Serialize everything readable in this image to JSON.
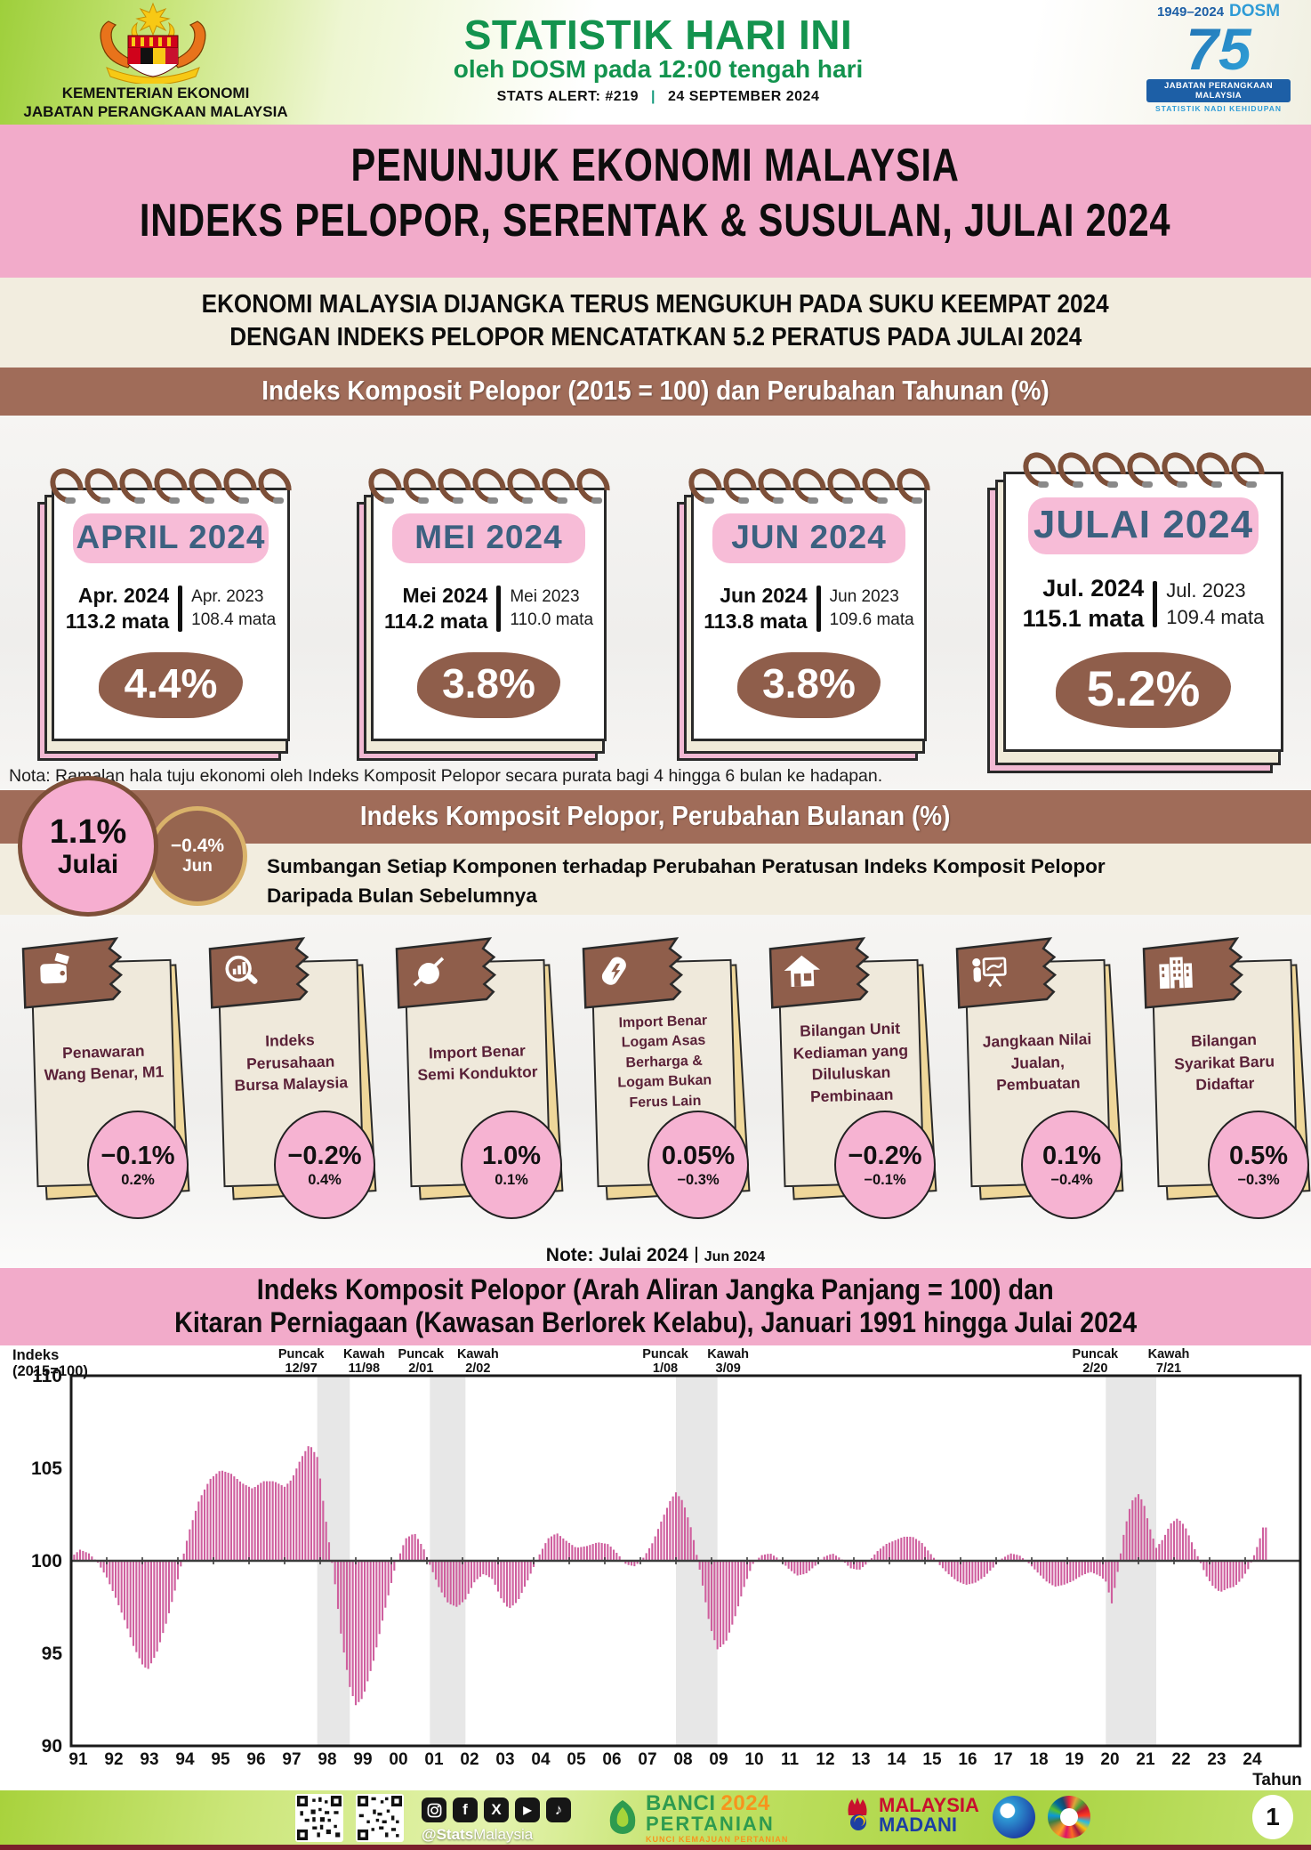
{
  "header": {
    "ministry_line1": "KEMENTERIAN EKONOMI",
    "ministry_line2": "JABATAN PERANGKAAN MALAYSIA",
    "title": "STATISTIK HARI INI",
    "subtitle": "oleh DOSM pada 12:00 tengah hari",
    "alert_label": "STATS ALERT: #219",
    "alert_sep": "|",
    "alert_date": "24 SEPTEMBER 2024",
    "dosm75": {
      "years": "1949–2024",
      "brand": "DOSM",
      "number": "75",
      "bar": "JABATAN PERANGKAAN MALAYSIA",
      "tagline": "STATISTIK NADI KEHIDUPAN"
    }
  },
  "title_band": {
    "line1": "PENUNJUK EKONOMI MALAYSIA",
    "line2": "INDEKS PELOPOR, SERENTAK & SUSULAN, JULAI 2024"
  },
  "statement": {
    "line1": "EKONOMI MALAYSIA DIJANGKA TERUS MENGUKUH PADA SUKU KEEMPAT 2024",
    "line2": "DENGAN INDEKS PELOPOR MENCATATKAN 5.2 PERATUS PADA JULAI 2024"
  },
  "annual": {
    "heading": "Indeks Komposit Pelopor (2015 = 100) dan Perubahan Tahunan (%)",
    "months": [
      {
        "label": "APRIL 2024",
        "cur_label": "Apr. 2024",
        "cur_value": "113.2 mata",
        "prev_label": "Apr. 2023",
        "prev_value": "108.4 mata",
        "change": "4.4%"
      },
      {
        "label": "MEI 2024",
        "cur_label": "Mei 2024",
        "cur_value": "114.2 mata",
        "prev_label": "Mei 2023",
        "prev_value": "110.0 mata",
        "change": "3.8%"
      },
      {
        "label": "JUN 2024",
        "cur_label": "Jun 2024",
        "cur_value": "113.8 mata",
        "prev_label": "Jun 2023",
        "prev_value": "109.6 mata",
        "change": "3.8%"
      },
      {
        "label": "JULAI 2024",
        "cur_label": "Jul. 2024",
        "cur_value": "115.1 mata",
        "prev_label": "Jul. 2023",
        "prev_value": "109.4 mata",
        "change": "5.2%"
      }
    ],
    "note": "Nota: Ramalan hala tuju ekonomi oleh Indeks Komposit Pelopor secara purata bagi 4 hingga 6 bulan ke hadapan."
  },
  "monthly": {
    "heading": "Indeks Komposit Pelopor, Perubahan Bulanan (%)",
    "current": {
      "value": "1.1%",
      "label": "Julai"
    },
    "previous": {
      "value": "−0.4%",
      "label": "Jun"
    },
    "desc_line1": "Sumbangan Setiap Komponen terhadap Perubahan Peratusan Indeks Komposit Pelopor",
    "desc_line2": "Daripada Bulan Sebelumnya",
    "components": [
      {
        "icon": "wallet-icon",
        "title": "Penawaran Wang Benar, M1",
        "value": "−0.1%",
        "previous": "0.2%"
      },
      {
        "icon": "chart-magnifier-icon",
        "title": "Indeks Perusahaan Bursa Malaysia",
        "value": "−0.2%",
        "previous": "0.4%"
      },
      {
        "icon": "semiconductor-icon",
        "title": "Import Benar Semi Konduktor",
        "value": "1.0%",
        "previous": "0.1%"
      },
      {
        "icon": "metal-battery-icon",
        "title": "Import Benar Logam Asas Berharga & Logam Bukan Ferus Lain",
        "value": "0.05%",
        "previous": "−0.3%"
      },
      {
        "icon": "house-icon",
        "title": "Bilangan Unit Kediaman yang Diluluskan Pembinaan",
        "value": "−0.2%",
        "previous": "−0.1%"
      },
      {
        "icon": "presenter-icon",
        "title": "Jangkaan Nilai Jualan, Pembuatan",
        "value": "0.1%",
        "previous": "−0.4%"
      },
      {
        "icon": "buildings-icon",
        "title": "Bilangan Syarikat Baru Didaftar",
        "value": "0.5%",
        "previous": "−0.3%"
      }
    ],
    "note_label": "Note: Julai 2024",
    "note_prev": "Jun 2024"
  },
  "chart_data": {
    "type": "bar",
    "title_line1": "Indeks Komposit Pelopor (Arah Aliran Jangka Panjang = 100) dan",
    "title_line2": "Kitaran Perniagaan (Kawasan Berlorek Kelabu), Januari 1991 hingga Julai 2024",
    "ylabel_line1": "Indeks",
    "ylabel_line2": "(2015=100)",
    "xlabel": "Tahun",
    "ylim": [
      90,
      110
    ],
    "yticks": [
      90,
      95,
      100,
      105,
      110
    ],
    "baseline": 100,
    "x_start": 1991.0,
    "x_end": 2024.5833,
    "x_tick_labels": [
      "91",
      "92",
      "93",
      "94",
      "95",
      "96",
      "97",
      "98",
      "99",
      "00",
      "01",
      "02",
      "03",
      "04",
      "05",
      "06",
      "07",
      "08",
      "09",
      "10",
      "11",
      "12",
      "13",
      "14",
      "15",
      "16",
      "17",
      "18",
      "19",
      "20",
      "21",
      "22",
      "23",
      "24"
    ],
    "bar_color": "#cf5f9e",
    "shaded_band_color": "#e7e7e7",
    "grid": false,
    "shaded_bands": [
      {
        "from": 1997.9167,
        "to": 1998.8333
      },
      {
        "from": 2001.0833,
        "to": 2002.0833
      },
      {
        "from": 2008.0,
        "to": 2009.1667
      },
      {
        "from": 2020.0833,
        "to": 2021.5
      }
    ],
    "annotations": [
      {
        "label": "Puncak",
        "date": "12/97",
        "t": 1997.9167
      },
      {
        "label": "Kawah",
        "date": "11/98",
        "t": 1998.8333
      },
      {
        "label": "Puncak",
        "date": "2/01",
        "t": 2001.0833
      },
      {
        "label": "Kawah",
        "date": "2/02",
        "t": 2002.0833
      },
      {
        "label": "Puncak",
        "date": "1/08",
        "t": 2008.0
      },
      {
        "label": "Kawah",
        "date": "3/09",
        "t": 2009.1667
      },
      {
        "label": "Puncak",
        "date": "2/20",
        "t": 2020.0833
      },
      {
        "label": "Kawah",
        "date": "7/21",
        "t": 2021.5
      }
    ],
    "series_keypoints": [
      [
        1991.0,
        100.2
      ],
      [
        1991.25,
        100.6
      ],
      [
        1991.5,
        100.4
      ],
      [
        1991.75,
        99.9
      ],
      [
        1992.0,
        99.1
      ],
      [
        1992.25,
        98.0
      ],
      [
        1992.5,
        96.8
      ],
      [
        1992.75,
        95.4
      ],
      [
        1993.0,
        94.4
      ],
      [
        1993.15,
        94.1
      ],
      [
        1993.4,
        95.0
      ],
      [
        1993.7,
        96.8
      ],
      [
        1994.0,
        99.0
      ],
      [
        1994.3,
        101.5
      ],
      [
        1994.6,
        103.3
      ],
      [
        1994.9,
        104.4
      ],
      [
        1995.2,
        104.9
      ],
      [
        1995.5,
        104.7
      ],
      [
        1995.8,
        104.2
      ],
      [
        1996.1,
        103.9
      ],
      [
        1996.4,
        104.3
      ],
      [
        1996.7,
        104.3
      ],
      [
        1997.0,
        104.0
      ],
      [
        1997.2,
        104.4
      ],
      [
        1997.45,
        105.5
      ],
      [
        1997.7,
        106.3
      ],
      [
        1997.92,
        105.6
      ],
      [
        1998.1,
        103.0
      ],
      [
        1998.4,
        99.0
      ],
      [
        1998.6,
        95.8
      ],
      [
        1998.83,
        93.2
      ],
      [
        1999.0,
        92.2
      ],
      [
        1999.2,
        92.6
      ],
      [
        1999.5,
        94.6
      ],
      [
        1999.8,
        97.2
      ],
      [
        2000.1,
        99.6
      ],
      [
        2000.4,
        101.2
      ],
      [
        2000.65,
        101.5
      ],
      [
        2000.9,
        100.7
      ],
      [
        2001.08,
        99.8
      ],
      [
        2001.35,
        98.5
      ],
      [
        2001.6,
        97.7
      ],
      [
        2001.85,
        97.5
      ],
      [
        2002.08,
        97.9
      ],
      [
        2002.35,
        98.9
      ],
      [
        2002.6,
        99.3
      ],
      [
        2002.85,
        99.0
      ],
      [
        2003.1,
        97.9
      ],
      [
        2003.3,
        97.4
      ],
      [
        2003.55,
        97.8
      ],
      [
        2003.8,
        98.8
      ],
      [
        2004.1,
        100.1
      ],
      [
        2004.4,
        101.2
      ],
      [
        2004.65,
        101.5
      ],
      [
        2004.9,
        101.1
      ],
      [
        2005.2,
        100.7
      ],
      [
        2005.5,
        100.8
      ],
      [
        2005.8,
        101.0
      ],
      [
        2006.1,
        100.9
      ],
      [
        2006.35,
        100.4
      ],
      [
        2006.6,
        99.8
      ],
      [
        2006.85,
        99.7
      ],
      [
        2007.1,
        100.2
      ],
      [
        2007.35,
        101.0
      ],
      [
        2007.6,
        102.2
      ],
      [
        2007.85,
        103.3
      ],
      [
        2008.0,
        103.7
      ],
      [
        2008.2,
        103.2
      ],
      [
        2008.45,
        101.6
      ],
      [
        2008.7,
        99.2
      ],
      [
        2008.95,
        96.5
      ],
      [
        2009.17,
        95.2
      ],
      [
        2009.4,
        95.6
      ],
      [
        2009.65,
        96.9
      ],
      [
        2009.9,
        98.5
      ],
      [
        2010.15,
        99.8
      ],
      [
        2010.4,
        100.3
      ],
      [
        2010.65,
        100.4
      ],
      [
        2010.9,
        100.1
      ],
      [
        2011.15,
        99.6
      ],
      [
        2011.4,
        99.2
      ],
      [
        2011.65,
        99.3
      ],
      [
        2011.9,
        99.7
      ],
      [
        2012.15,
        100.2
      ],
      [
        2012.4,
        100.4
      ],
      [
        2012.65,
        100.1
      ],
      [
        2012.9,
        99.6
      ],
      [
        2013.15,
        99.5
      ],
      [
        2013.4,
        99.9
      ],
      [
        2013.65,
        100.5
      ],
      [
        2013.9,
        100.9
      ],
      [
        2014.15,
        101.1
      ],
      [
        2014.4,
        101.3
      ],
      [
        2014.65,
        101.3
      ],
      [
        2014.9,
        101.0
      ],
      [
        2015.15,
        100.4
      ],
      [
        2015.4,
        99.8
      ],
      [
        2015.65,
        99.3
      ],
      [
        2015.9,
        98.9
      ],
      [
        2016.15,
        98.7
      ],
      [
        2016.4,
        98.8
      ],
      [
        2016.65,
        99.1
      ],
      [
        2016.9,
        99.6
      ],
      [
        2017.15,
        100.1
      ],
      [
        2017.4,
        100.4
      ],
      [
        2017.65,
        100.3
      ],
      [
        2017.9,
        99.9
      ],
      [
        2018.15,
        99.4
      ],
      [
        2018.4,
        98.9
      ],
      [
        2018.65,
        98.6
      ],
      [
        2018.9,
        98.7
      ],
      [
        2019.15,
        98.9
      ],
      [
        2019.4,
        99.2
      ],
      [
        2019.65,
        99.4
      ],
      [
        2019.9,
        99.2
      ],
      [
        2020.08,
        98.9
      ],
      [
        2020.25,
        97.7
      ],
      [
        2020.4,
        99.2
      ],
      [
        2020.6,
        101.6
      ],
      [
        2020.8,
        103.2
      ],
      [
        2021.0,
        103.6
      ],
      [
        2021.15,
        103.1
      ],
      [
        2021.3,
        101.9
      ],
      [
        2021.5,
        100.7
      ],
      [
        2021.7,
        101.2
      ],
      [
        2021.9,
        102.0
      ],
      [
        2022.1,
        102.3
      ],
      [
        2022.3,
        101.9
      ],
      [
        2022.5,
        101.0
      ],
      [
        2022.7,
        100.1
      ],
      [
        2022.9,
        99.2
      ],
      [
        2023.1,
        98.6
      ],
      [
        2023.3,
        98.3
      ],
      [
        2023.5,
        98.5
      ],
      [
        2023.7,
        98.6
      ],
      [
        2023.9,
        99.0
      ],
      [
        2024.1,
        99.6
      ],
      [
        2024.25,
        100.3
      ],
      [
        2024.4,
        101.1
      ],
      [
        2024.5,
        101.8
      ]
    ]
  },
  "footer": {
    "handle_bold": "@Stats",
    "handle_rest": "Malaysia",
    "social": [
      {
        "name": "instagram",
        "glyph": ""
      },
      {
        "name": "facebook",
        "glyph": "f"
      },
      {
        "name": "x",
        "glyph": "X"
      },
      {
        "name": "youtube",
        "glyph": "▶"
      },
      {
        "name": "tiktok",
        "glyph": "♪"
      }
    ],
    "banci": {
      "word1": "BANCI",
      "year": "2024",
      "word2": "PERTANIAN",
      "tagline": "KUNCI KEMAJUAN PERTANIAN"
    },
    "madani": {
      "line1": "MALAYSIA",
      "line2": "MADANI"
    },
    "page": "1"
  }
}
